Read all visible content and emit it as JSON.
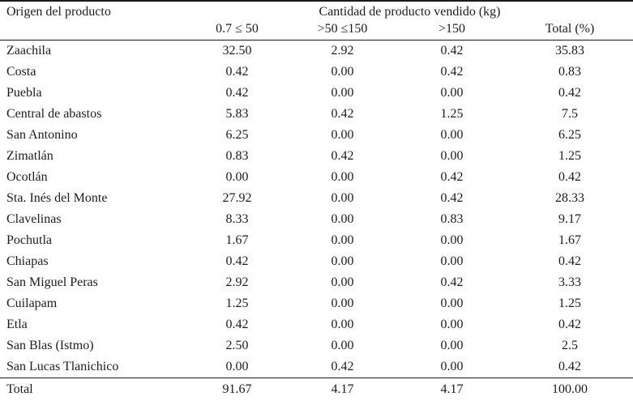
{
  "table": {
    "col1_header": "Origen del producto",
    "group_header": "Cantidad de producto vendido (kg)",
    "sub_headers": [
      "0.7 ≤ 50",
      ">50 ≤150",
      ">150",
      "Total (%)"
    ],
    "rows": [
      {
        "origin": "Zaachila",
        "values": [
          "32.50",
          "2.92",
          "0.42",
          "35.83"
        ]
      },
      {
        "origin": "Costa",
        "values": [
          "0.42",
          "0.00",
          "0.42",
          "0.83"
        ]
      },
      {
        "origin": "Puebla",
        "values": [
          "0.42",
          "0.00",
          "0.00",
          "0.42"
        ]
      },
      {
        "origin": "Central de abastos",
        "values": [
          "5.83",
          "0.42",
          "1.25",
          "7.5"
        ]
      },
      {
        "origin": "San Antonino",
        "values": [
          "6.25",
          "0.00",
          "0.00",
          "6.25"
        ]
      },
      {
        "origin": "Zimatlán",
        "values": [
          "0.83",
          "0.42",
          "0.00",
          "1.25"
        ]
      },
      {
        "origin": "Ocotlán",
        "values": [
          "0.00",
          "0.00",
          "0.42",
          "0.42"
        ]
      },
      {
        "origin": "Sta. Inés del Monte",
        "values": [
          "27.92",
          "0.00",
          "0.42",
          "28.33"
        ]
      },
      {
        "origin": "Clavelinas",
        "values": [
          "8.33",
          "0.00",
          "0.83",
          "9.17"
        ]
      },
      {
        "origin": "Pochutla",
        "values": [
          "1.67",
          "0.00",
          "0.00",
          "1.67"
        ]
      },
      {
        "origin": "Chiapas",
        "values": [
          "0.42",
          "0.00",
          "0.00",
          "0.42"
        ]
      },
      {
        "origin": "San Miguel Peras",
        "values": [
          "2.92",
          "0.00",
          "0.42",
          "3.33"
        ]
      },
      {
        "origin": "Cuilapam",
        "values": [
          "1.25",
          "0.00",
          "0.00",
          "1.25"
        ]
      },
      {
        "origin": "Etla",
        "values": [
          "0.42",
          "0.00",
          "0.00",
          "0.42"
        ]
      },
      {
        "origin": "San Blas (Istmo)",
        "values": [
          "2.50",
          "0.00",
          "0.00",
          "2.5"
        ]
      },
      {
        "origin": "San Lucas Tlanichico",
        "values": [
          "0.00",
          "0.42",
          "0.00",
          "0.42"
        ]
      }
    ],
    "total_row": {
      "label": "Total",
      "values": [
        "91.67",
        "4.17",
        "4.17",
        "100.00"
      ]
    },
    "colors": {
      "text": "#1c1c1c",
      "rule": "#1a1a1a",
      "background": "#ffffff"
    }
  }
}
